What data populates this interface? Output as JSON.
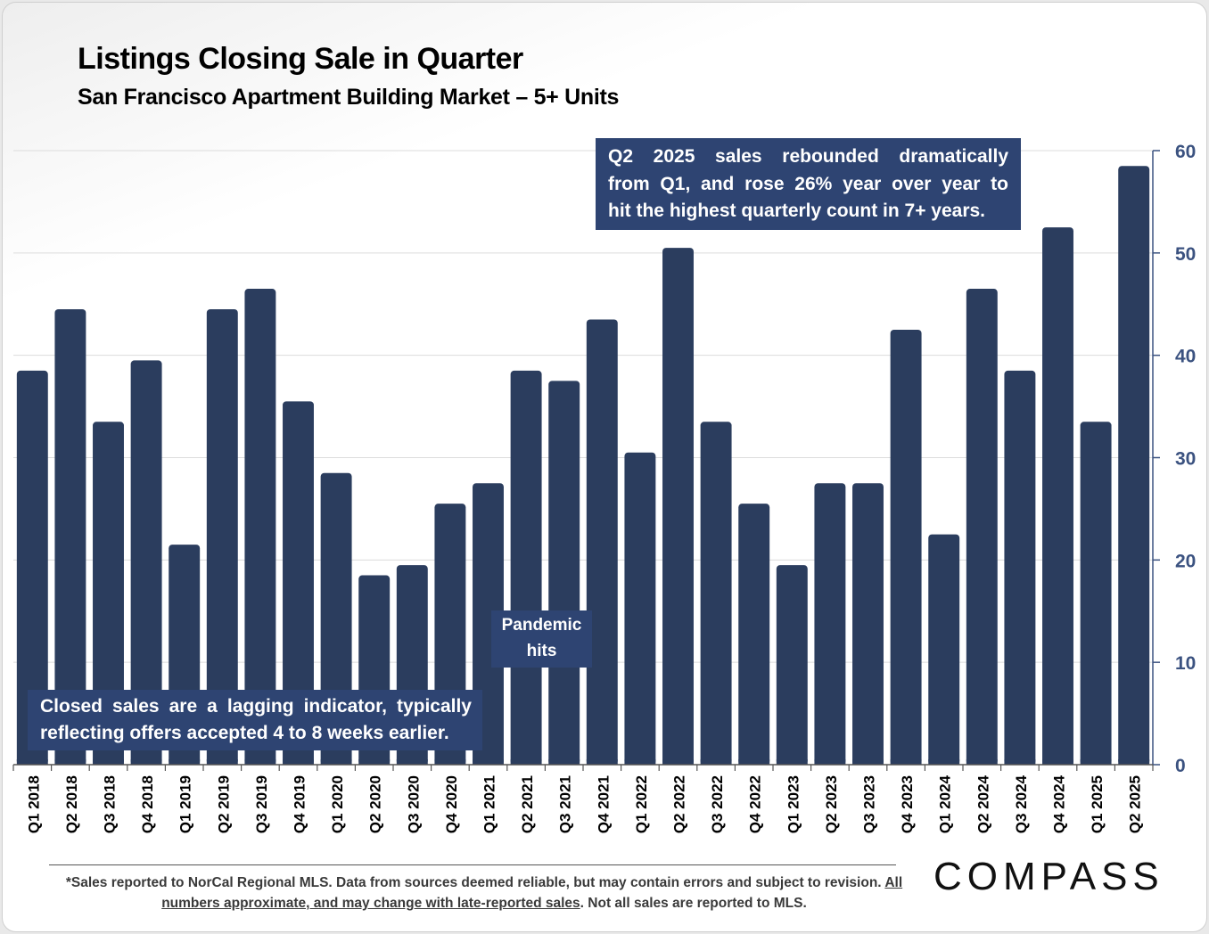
{
  "header": {
    "title": "Listings Closing Sale in Quarter",
    "subtitle": "San Francisco Apartment Building Market – 5+ Units"
  },
  "annotations": {
    "q2_2025_line1": "Q2 2025 sales rebounded dramatically",
    "q2_2025_line2": "from Q1, and rose 26% year over year to",
    "q2_2025_line3": "hit the highest quarterly count in 7+ years.",
    "lagging_line1": "Closed sales are a lagging indicator, typically",
    "lagging_line2": "reflecting offers accepted 4 to 8 weeks earlier.",
    "pandemic_line1": "Pandemic",
    "pandemic_line2": "hits"
  },
  "footer": {
    "note_part1": "*Sales reported to NorCal Regional MLS. Data from sources deemed reliable, but may contain errors and subject to revision. ",
    "note_underlined": "All numbers approximate, and may change with late-reported sales",
    "note_part2": ". Not all sales are reported to MLS.",
    "logo": "COMPASS"
  },
  "chart_data": {
    "type": "bar",
    "title": "Listings Closing Sale in Quarter",
    "subtitle": "San Francisco Apartment Building Market – 5+ Units",
    "categories": [
      "Q1 2018",
      "Q2 2018",
      "Q3 2018",
      "Q4 2018",
      "Q1 2019",
      "Q2 2019",
      "Q3 2019",
      "Q4 2019",
      "Q1 2020",
      "Q2 2020",
      "Q3 2020",
      "Q4 2020",
      "Q1 2021",
      "Q2 2021",
      "Q3 2021",
      "Q4 2021",
      "Q1 2022",
      "Q2 2022",
      "Q3 2022",
      "Q4 2022",
      "Q1 2023",
      "Q2 2023",
      "Q3 2023",
      "Q4 2023",
      "Q1 2024",
      "Q2 2024",
      "Q3 2024",
      "Q4 2024",
      "Q1 2025",
      "Q2 2025"
    ],
    "values": [
      38.5,
      44.5,
      33.5,
      39.5,
      21.5,
      44.5,
      46.5,
      35.5,
      28.5,
      18.5,
      19.5,
      25.5,
      27.5,
      38.5,
      37.5,
      43.5,
      30.5,
      50.5,
      33.5,
      25.5,
      19.5,
      27.5,
      27.5,
      42.5,
      22.5,
      46.5,
      38.5,
      52.5,
      33.5,
      58.5
    ],
    "ylim": [
      0,
      60
    ],
    "y_ticks": [
      0,
      10,
      20,
      30,
      40,
      50,
      60
    ],
    "y_axis_side": "right",
    "grid": true,
    "bar_color": "#2b3d5e"
  }
}
